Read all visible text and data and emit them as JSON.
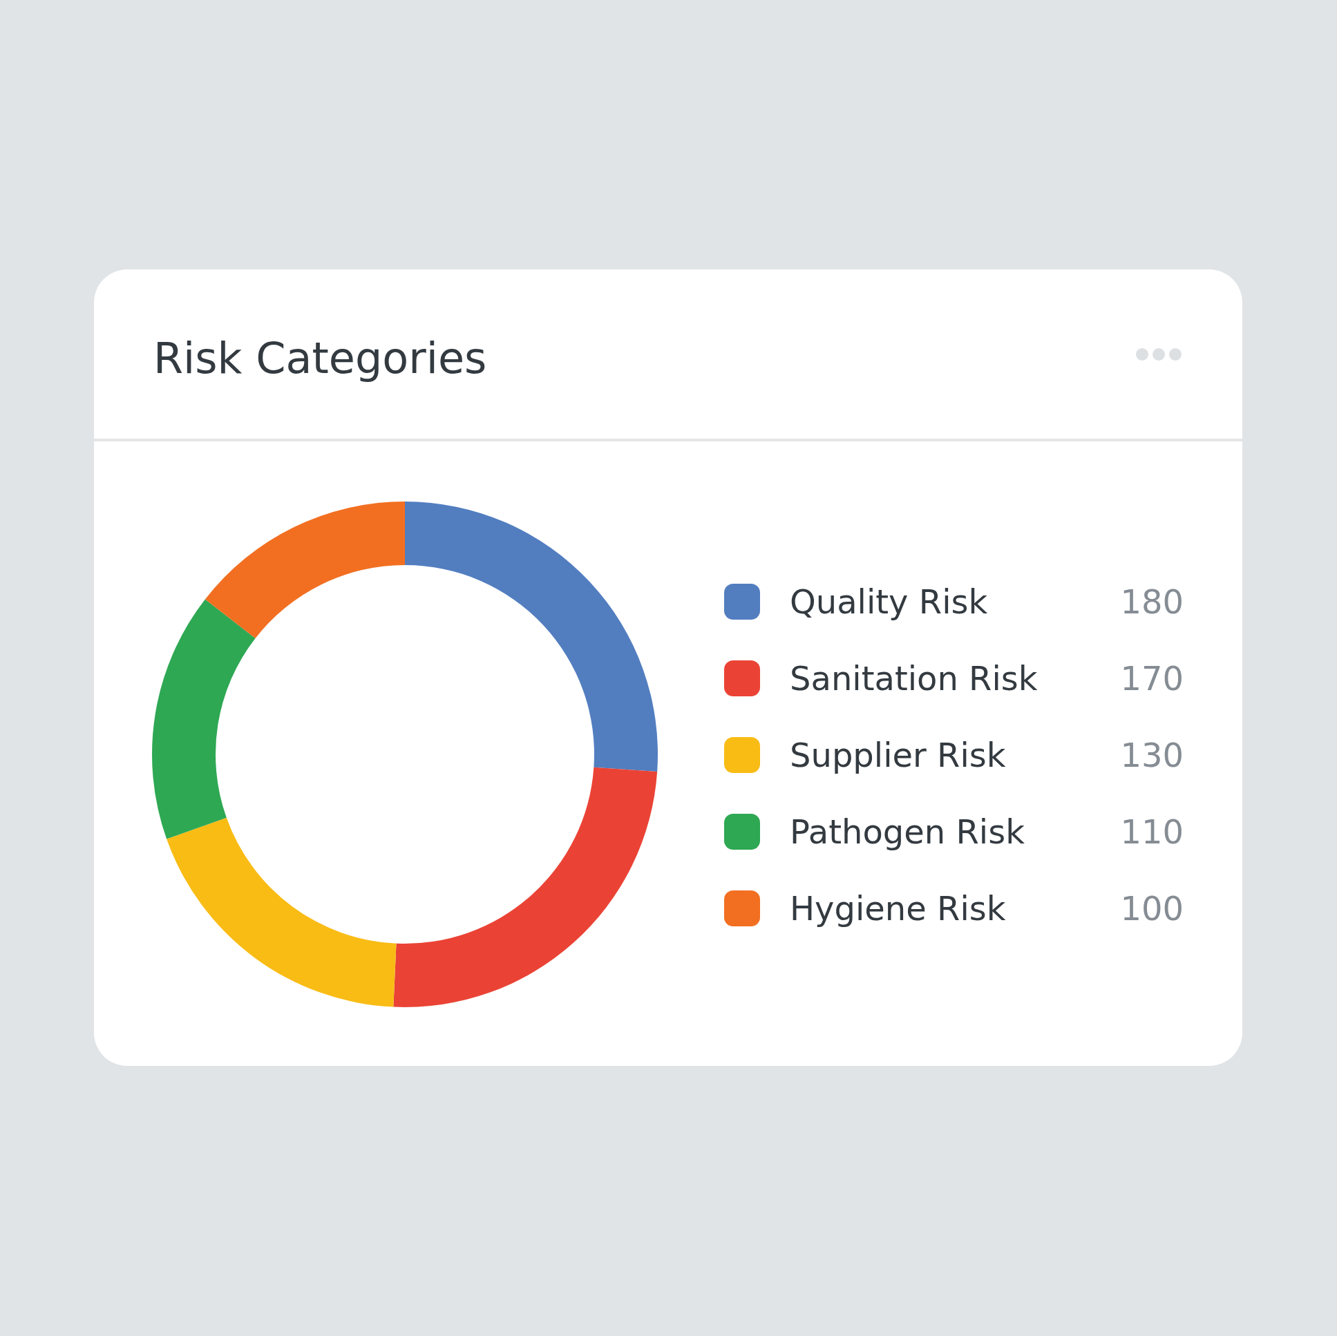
{
  "chart_data": {
    "type": "donut",
    "title": "Risk Categories",
    "categories": [
      "Quality Risk",
      "Sanitation Risk",
      "Supplier Risk",
      "Pathogen Risk",
      "Hygiene Risk"
    ],
    "values": [
      180,
      170,
      130,
      110,
      100
    ],
    "colors": [
      "#527ec0",
      "#ea4335",
      "#f9bc15",
      "#2ea853",
      "#f26f21"
    ],
    "legend": "right",
    "data_labels": true
  }
}
